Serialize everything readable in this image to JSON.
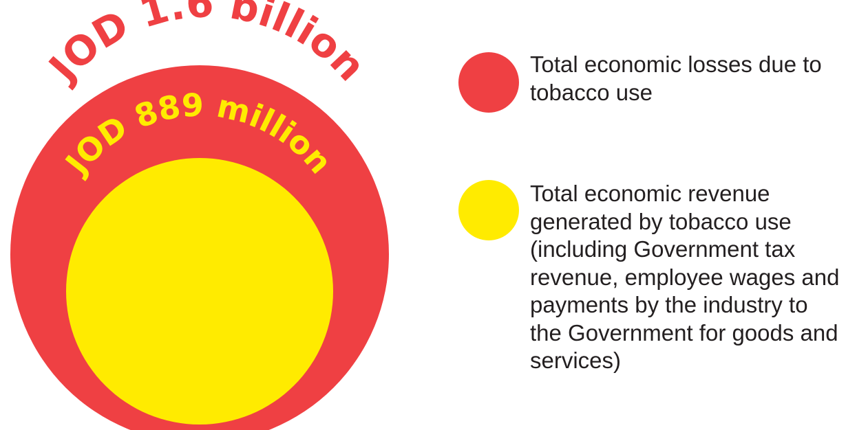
{
  "chart_data": {
    "type": "bubble",
    "series": [
      {
        "label": "JOD 1.6 billion",
        "value": 1600000000,
        "unit": "JOD",
        "color": "#ef4043",
        "legend": "Total economic losses due to\ntobacco use"
      },
      {
        "label": "JOD 889 million",
        "value": 889000000,
        "unit": "JOD",
        "color": "#ffeb00",
        "legend": "Total economic revenue\ngenerated by tobacco use\n(including Government tax\nrevenue, employee wages and\npayments by the industry to\nthe Government for goods and\nservices)"
      }
    ],
    "legend_position": "right"
  }
}
